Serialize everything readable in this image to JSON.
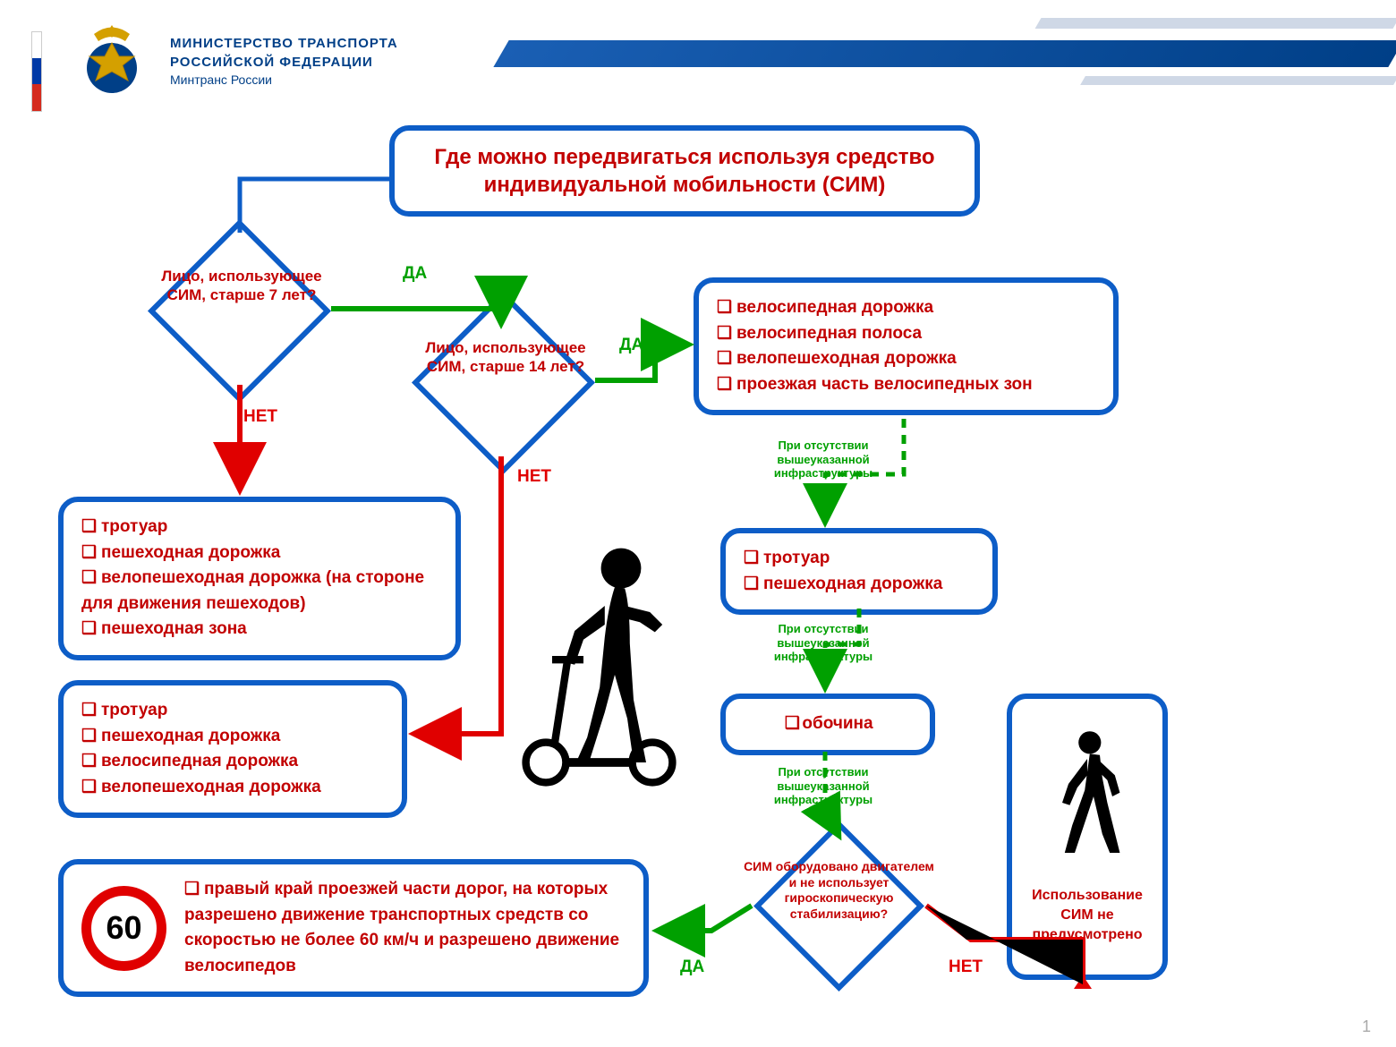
{
  "header": {
    "line1": "МИНИСТЕРСТВО ТРАНСПОРТА",
    "line2": "РОССИЙСКОЙ ФЕДЕРАЦИИ",
    "line3": "Минтранс России"
  },
  "title": "Где можно передвигаться используя средство индивидуальной мобильности (СИМ)",
  "diamonds": {
    "d1": "Лицо, использующее СИМ, старше 7 лет?",
    "d2": "Лицо, использующее СИМ, старше 14 лет?",
    "d3": "СИМ оборудовано двигателем и не использует гироскопическую стабилизацию?"
  },
  "labels": {
    "yes": "ДА",
    "no": "НЕТ",
    "cond": "При отсутствии вышеуказанной инфраструктуры"
  },
  "boxes": {
    "b1_items": [
      "тротуар",
      "пешеходная дорожка",
      "велопешеходная дорожка (на стороне для движения пешеходов)",
      "пешеходная зона"
    ],
    "b2_items": [
      "тротуар",
      "пешеходная дорожка",
      "велосипедная дорожка",
      "велопешеходная дорожка"
    ],
    "b3_items": [
      "велосипедная дорожка",
      "велосипедная полоса",
      "велопешеходная дорожка",
      "проезжая часть велосипедных зон"
    ],
    "b4_items": [
      "тротуар",
      "пешеходная дорожка"
    ],
    "b5_items": [
      "обочина"
    ],
    "b6_items": [
      "правый край проезжей части дорог, на которых разрешено движение транспортных средств со скоростью не более 60 км/ч и разрешено движение велосипедов"
    ],
    "final": "Использование СИМ не предусмотрено"
  },
  "speed": "60",
  "page": "1",
  "colors": {
    "border": "#0d5dc7",
    "text_red": "#c20000",
    "green": "#00a000",
    "arrow_red": "#e00000"
  }
}
